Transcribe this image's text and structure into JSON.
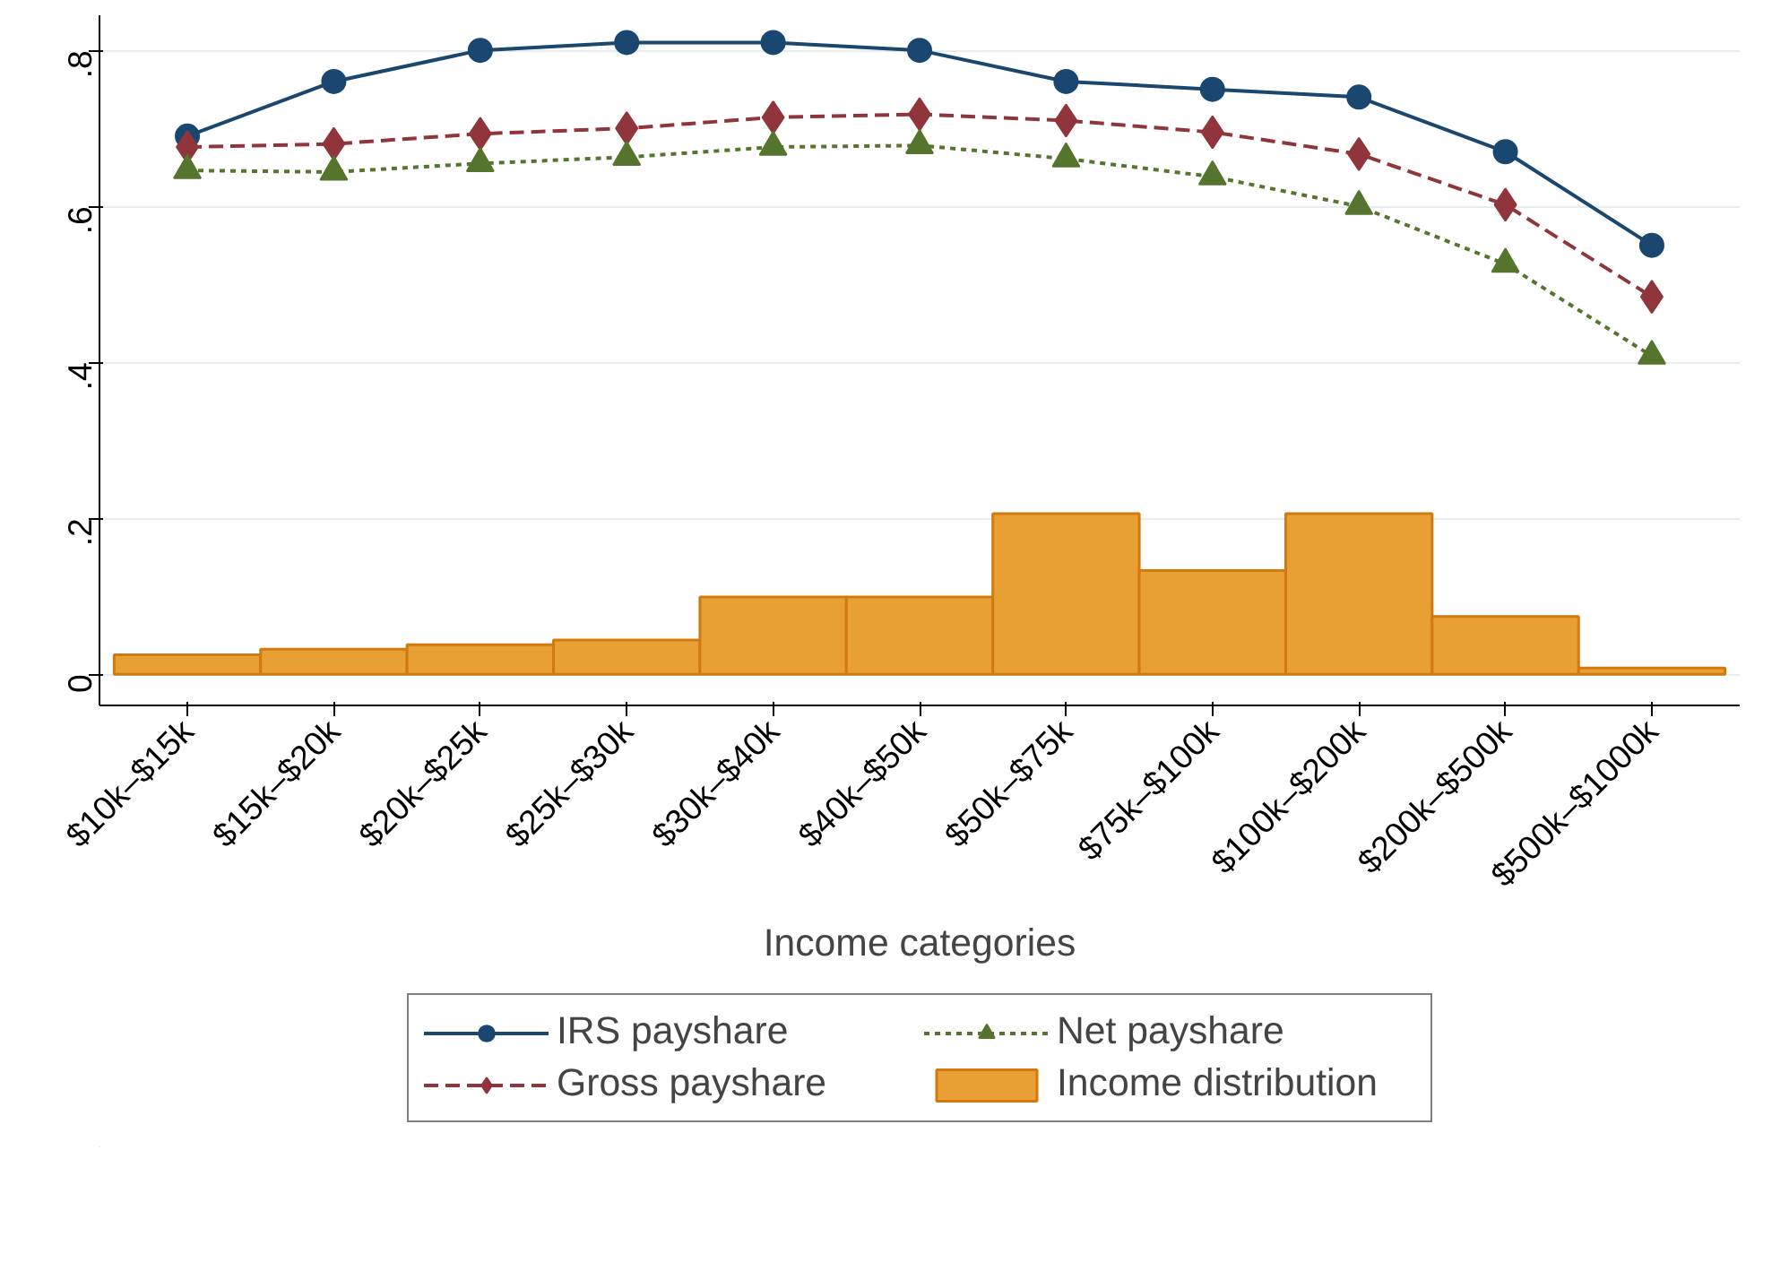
{
  "chart_data": {
    "type": "line",
    "xlabel": "Income categories",
    "categories": [
      "$10k–$15k",
      "$15k–$20k",
      "$20k–$25k",
      "$25k–$30k",
      "$30k–$40k",
      "$40k–$50k",
      "$50k–$75k",
      "$75k–$100k",
      "$100k–$200k",
      "$200k–$500k",
      "$500k–$1000k"
    ],
    "series": [
      {
        "name": "IRS payshare",
        "color": "#1a476f",
        "marker": "circle",
        "line_style": "solid",
        "values": [
          0.69,
          0.76,
          0.8,
          0.81,
          0.81,
          0.8,
          0.76,
          0.75,
          0.74,
          0.67,
          0.55
        ]
      },
      {
        "name": "Gross payshare",
        "color": "#90353b",
        "marker": "diamond",
        "line_style": "dashed",
        "values": [
          0.676,
          0.68,
          0.693,
          0.7,
          0.714,
          0.718,
          0.71,
          0.695,
          0.667,
          0.602,
          0.484
        ]
      },
      {
        "name": "Net payshare",
        "color": "#55752f",
        "marker": "triangle",
        "line_style": "dotted",
        "values": [
          0.646,
          0.644,
          0.655,
          0.663,
          0.676,
          0.678,
          0.661,
          0.638,
          0.6,
          0.526,
          0.408
        ]
      },
      {
        "name": "Income distribution",
        "type": "bar",
        "color": "#e8a035",
        "values": [
          0.025,
          0.032,
          0.038,
          0.044,
          0.099,
          0.099,
          0.206,
          0.133,
          0.206,
          0.074,
          0.008
        ]
      }
    ],
    "ylim": [
      -0.04,
      0.845
    ],
    "yticks": [
      {
        "value": 0,
        "label": "0"
      },
      {
        "value": 0.2,
        "label": ".2"
      },
      {
        "value": 0.4,
        "label": ".4"
      },
      {
        "value": 0.6,
        "label": ".6"
      },
      {
        "value": 0.8,
        "label": ".8"
      }
    ],
    "grid": "y",
    "legend": "bottom"
  }
}
